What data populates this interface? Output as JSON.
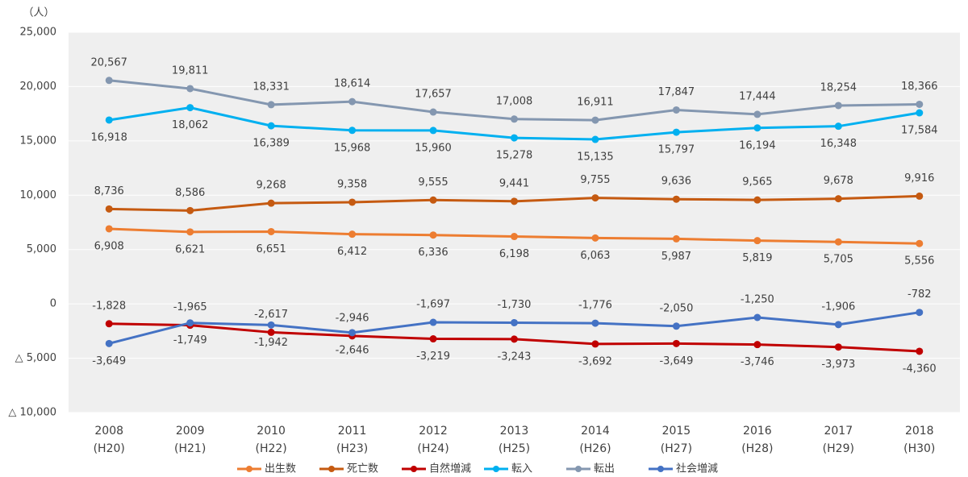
{
  "chart_data": {
    "type": "line",
    "y_label": "（人）",
    "categories": [
      "2008\n(H20)",
      "2009\n(H21)",
      "2010\n(H22)",
      "2011\n(H23)",
      "2012\n(H24)",
      "2013\n(H25)",
      "2014\n(H26)",
      "2015\n(H27)",
      "2016\n(H28)",
      "2017\n(H29)",
      "2018\n(H30)"
    ],
    "ylim": [
      -10000,
      25000
    ],
    "yticks": [
      {
        "value": -10000,
        "label": "△ 10,000"
      },
      {
        "value": -5000,
        "label": "△ 5,000"
      },
      0,
      {
        "value": 5000,
        "label": "5,000"
      },
      {
        "value": 10000,
        "label": "10,000"
      },
      {
        "value": 15000,
        "label": "15,000"
      },
      {
        "value": 20000,
        "label": "20,000"
      },
      {
        "value": 25000,
        "label": "25,000"
      }
    ],
    "grid": true,
    "legend": "bottom",
    "series": [
      {
        "name": "出生数",
        "color": "#ED7D31",
        "values": [
          6908,
          6621,
          6651,
          6412,
          6336,
          6198,
          6063,
          5987,
          5819,
          5705,
          5556
        ],
        "value_labels": [
          "6,908",
          "6,621",
          "6,651",
          "6,412",
          "6,336",
          "6,198",
          "6,063",
          "5,987",
          "5,819",
          "5,705",
          "5,556"
        ]
      },
      {
        "name": "死亡数",
        "color": "#C55A11",
        "values": [
          8736,
          8586,
          9268,
          9358,
          9555,
          9441,
          9755,
          9636,
          9565,
          9678,
          9916
        ],
        "value_labels": [
          "8,736",
          "8,586",
          "9,268",
          "9,358",
          "9,555",
          "9,441",
          "9,755",
          "9,636",
          "9,565",
          "9,678",
          "9,916"
        ]
      },
      {
        "name": "自然増減",
        "color": "#C00000",
        "values": [
          -1828,
          -1965,
          -2617,
          -2946,
          -3219,
          -3243,
          -3692,
          -3649,
          -3746,
          -3973,
          -4360
        ],
        "value_labels": [
          "-1,828",
          "-1,965",
          "-2,617",
          "-2,946",
          "-3,219",
          "-3,243",
          "-3,692",
          "-3,649",
          "-3,746",
          "-3,973",
          "-4,360"
        ]
      },
      {
        "name": "転入",
        "color": "#00B0F0",
        "values": [
          16918,
          18062,
          16389,
          15968,
          15960,
          15278,
          15135,
          15797,
          16194,
          16348,
          17584
        ],
        "value_labels": [
          "16,918",
          "18,062",
          "16,389",
          "15,968",
          "15,960",
          "15,278",
          "15,135",
          "15,797",
          "16,194",
          "16,348",
          "17,584"
        ]
      },
      {
        "name": "転出",
        "color": "#8497B0",
        "values": [
          20567,
          19811,
          18331,
          18614,
          17657,
          17008,
          16911,
          17847,
          17444,
          18254,
          18366
        ],
        "value_labels": [
          "20,567",
          "19,811",
          "18,331",
          "18,614",
          "17,657",
          "17,008",
          "16,911",
          "17,847",
          "17,444",
          "18,254",
          "18,366"
        ]
      },
      {
        "name": "社会増減",
        "color": "#4472C4",
        "values": [
          -3649,
          -1749,
          -1942,
          -2646,
          -1697,
          -1730,
          -1776,
          -2050,
          -1250,
          -1906,
          -782
        ],
        "value_labels": [
          "-3,649",
          "-1,749",
          "-1,942",
          "-2,646",
          "-1,697",
          "-1,730",
          "-1,776",
          "-2,050",
          "-1,250",
          "-1,906",
          "-782"
        ]
      }
    ]
  }
}
